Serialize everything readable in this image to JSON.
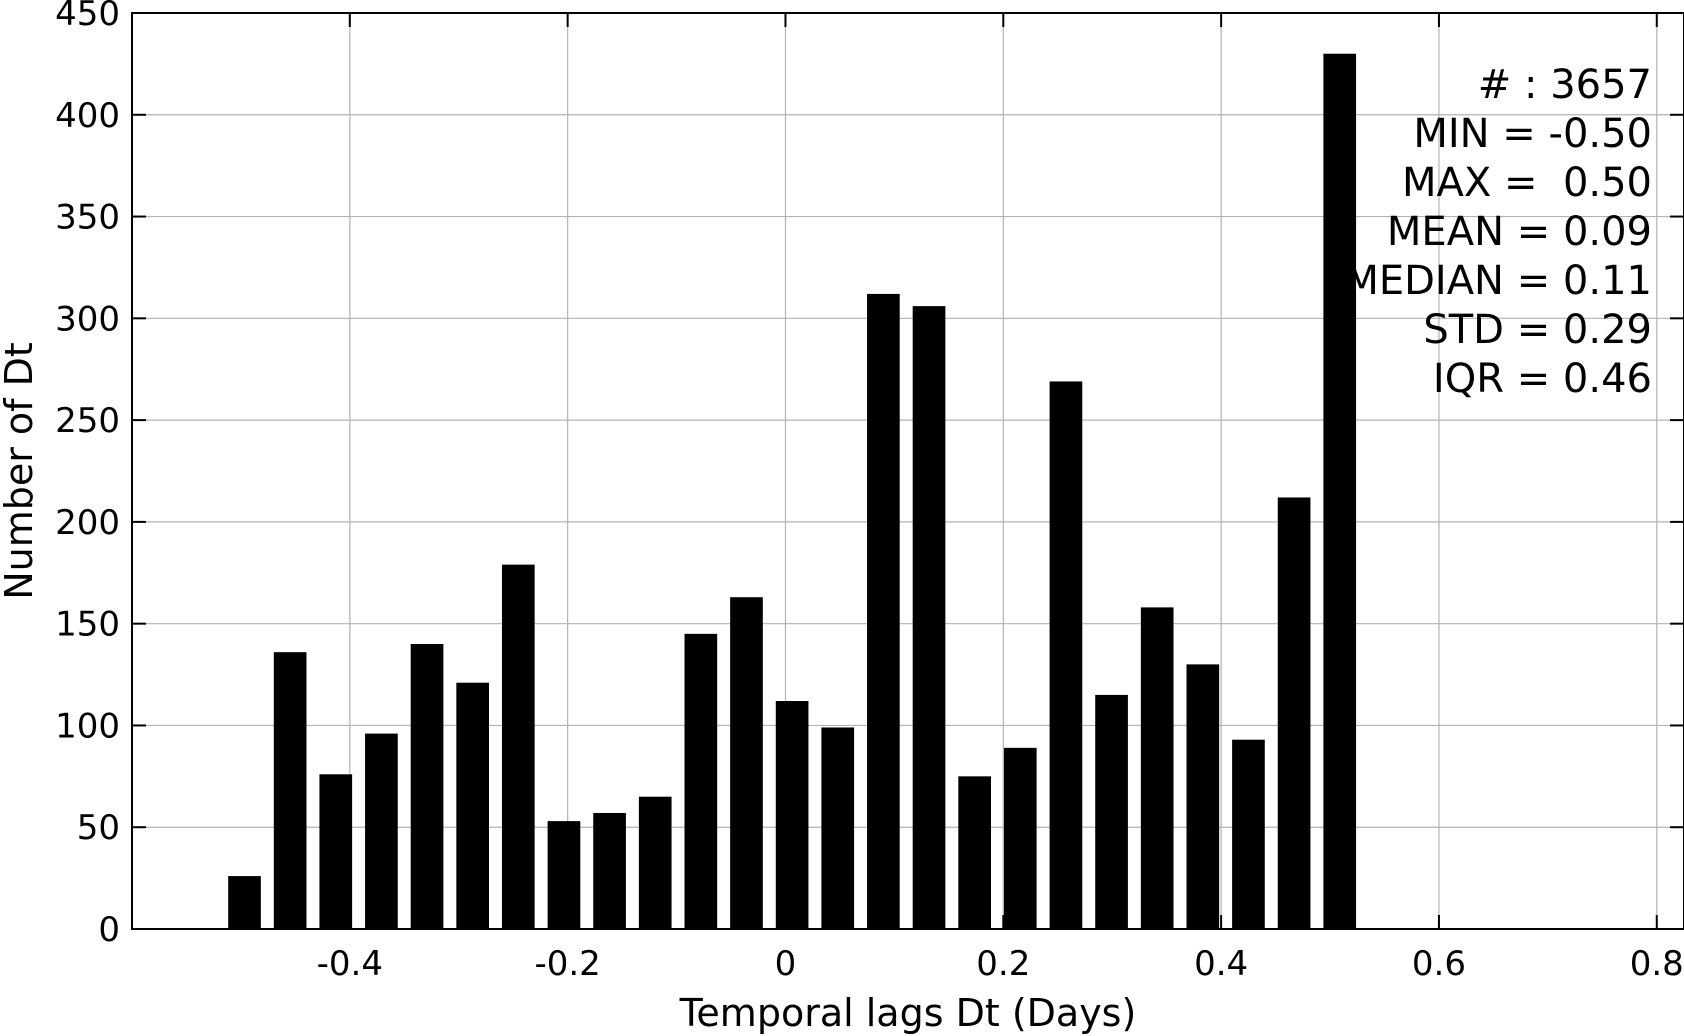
{
  "chart_data": {
    "type": "bar",
    "xlabel": "Temporal lags Dt (Days)",
    "ylabel": "Number of Dt",
    "xlim": [
      -0.6,
      0.825
    ],
    "ylim": [
      0,
      450
    ],
    "x_ticks": [
      -0.4,
      -0.2,
      0,
      0.2,
      0.4,
      0.6,
      0.8
    ],
    "x_tick_labels": [
      "-0.4",
      "-0.2",
      "0",
      "0.2",
      "0.4",
      "0.6",
      "0.8"
    ],
    "y_ticks": [
      0,
      50,
      100,
      150,
      200,
      250,
      300,
      350,
      400,
      450
    ],
    "y_tick_labels": [
      "0",
      "50",
      "100",
      "150",
      "200",
      "250",
      "300",
      "350",
      "400",
      "450"
    ],
    "grid": true,
    "bar_color": "#000000",
    "grid_color": "#b3b3b3",
    "bar_width": 0.03,
    "x": [
      -0.4967,
      -0.4548,
      -0.4129,
      -0.371,
      -0.3291,
      -0.2872,
      -0.2453,
      -0.2034,
      -0.1615,
      -0.1196,
      -0.0777,
      -0.0358,
      0.0061,
      0.048,
      0.0899,
      0.1318,
      0.1737,
      0.2156,
      0.2575,
      0.2994,
      0.3413,
      0.3832,
      0.4251,
      0.467,
      0.5089
    ],
    "values": [
      26,
      136,
      76,
      96,
      140,
      121,
      179,
      53,
      57,
      65,
      145,
      163,
      112,
      99,
      312,
      306,
      75,
      89,
      269,
      115,
      158,
      130,
      93,
      212,
      430
    ]
  },
  "stats": {
    "lines": [
      "# : 3657",
      "MIN = -0.50",
      "MAX =  0.50",
      "MEAN = 0.09",
      "MEDIAN = 0.11",
      "STD = 0.29",
      "IQR = 0.46"
    ]
  }
}
